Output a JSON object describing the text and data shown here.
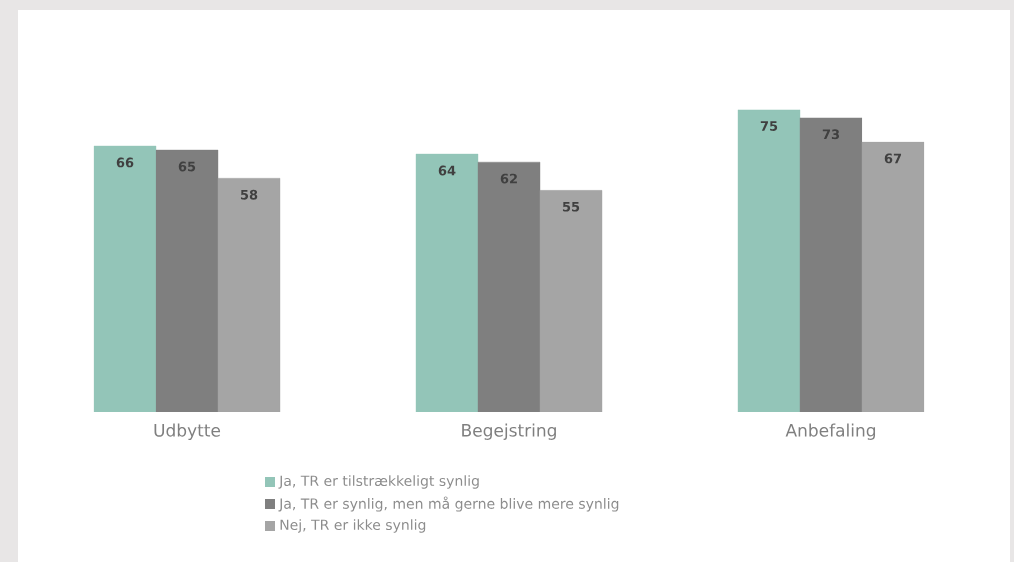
{
  "chart_data": {
    "type": "bar",
    "categories": [
      "Udbytte",
      "Begejstring",
      "Anbefaling"
    ],
    "series": [
      {
        "name": "Ja, TR er tilstrækkeligt synlig",
        "color": "#93c5b8",
        "values": [
          66,
          64,
          75
        ]
      },
      {
        "name": "Ja, TR er synlig, men må gerne blive mere synlig",
        "color": "#7f7f7f",
        "values": [
          65,
          62,
          73
        ]
      },
      {
        "name": "Nej, TR er ikke synlig",
        "color": "#a5a5a5",
        "values": [
          58,
          55,
          67
        ]
      }
    ],
    "data_labels": true,
    "legend": "bottom"
  }
}
